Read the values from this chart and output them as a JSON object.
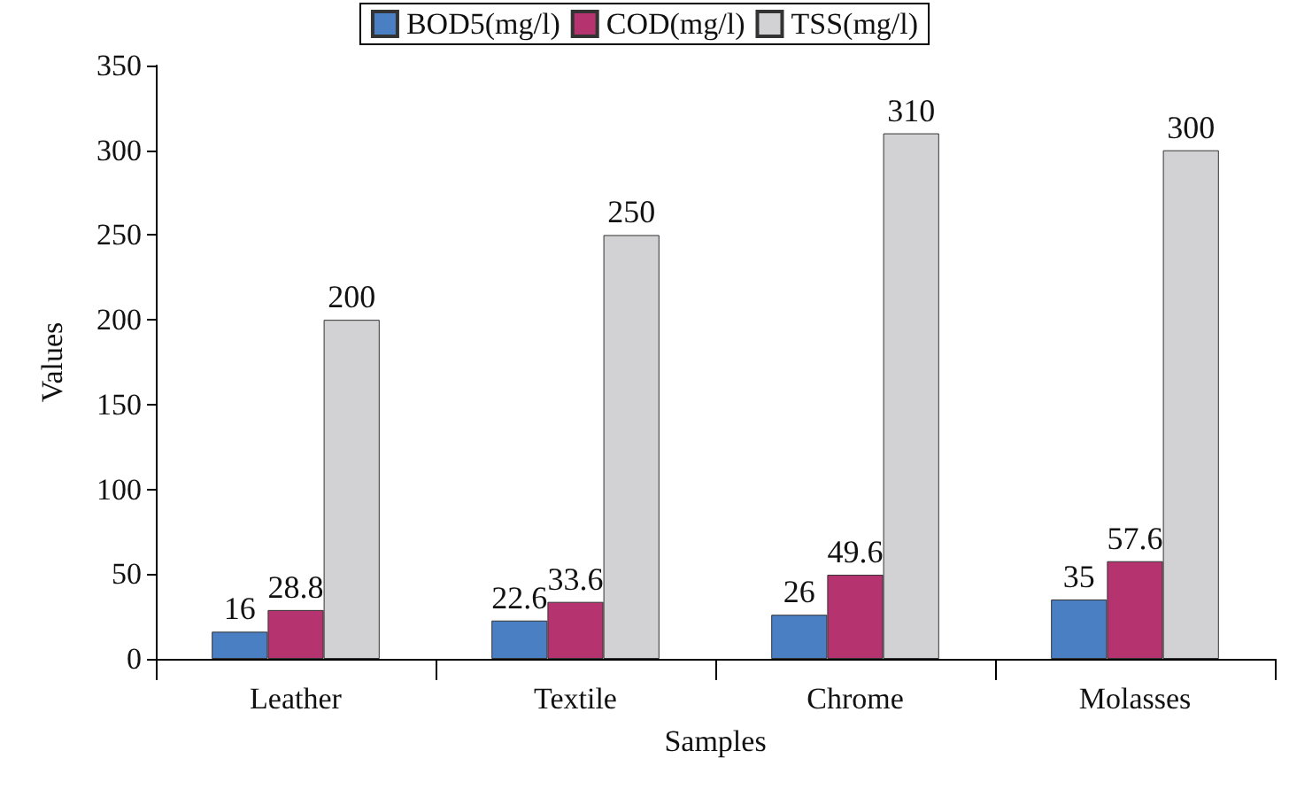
{
  "chart_data": {
    "type": "bar",
    "xlabel": "Samples",
    "ylabel": "Values",
    "categories": [
      "Leather",
      "Textile",
      "Chrome",
      "Molasses"
    ],
    "series": [
      {
        "name": "BOD5(mg/l)",
        "color": "#4a7fc4",
        "values": [
          16,
          22.6,
          26,
          35
        ]
      },
      {
        "name": "COD(mg/l)",
        "color": "#b5336f",
        "values": [
          28.8,
          33.6,
          49.6,
          57.6
        ]
      },
      {
        "name": "TSS(mg/l)",
        "color": "#d2d2d4",
        "values": [
          200,
          250,
          310,
          300
        ]
      }
    ],
    "ylim": [
      0,
      350
    ],
    "yticks": [
      0,
      50,
      100,
      150,
      200,
      250,
      300,
      350
    ],
    "data_labels": true,
    "grid": false,
    "legend": "top"
  }
}
